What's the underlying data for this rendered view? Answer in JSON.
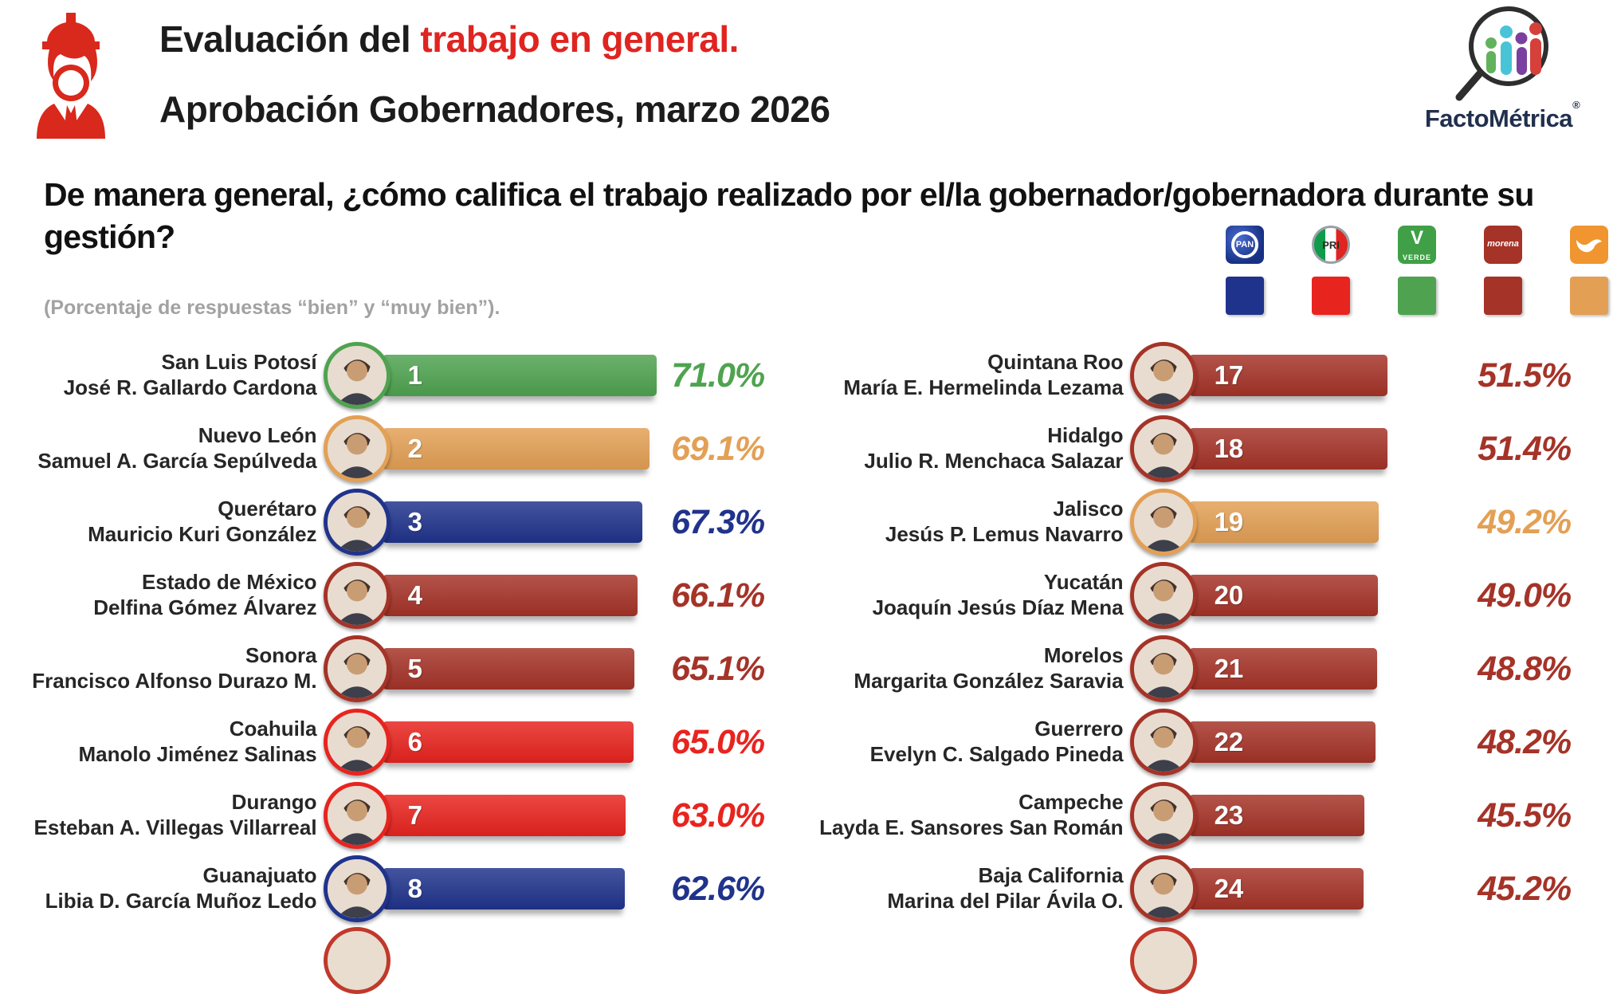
{
  "header": {
    "title_prefix": "Evaluación del ",
    "title_highlight": "trabajo en general.",
    "subtitle": "Aprobación Gobernadores, marzo 2026"
  },
  "brand": {
    "name": "FactoMétrica",
    "registered": "®"
  },
  "question": {
    "text": "De manera general, ¿cómo califica el trabajo realizado por el/la gobernador/gobernadora durante su gestión?",
    "note": "(Porcentaje de respuestas “bien” y “muy bien”)."
  },
  "legend": {
    "parties": [
      {
        "key": "pan",
        "name": "PAN",
        "color": "#20338c"
      },
      {
        "key": "pri",
        "name": "PRI",
        "color": "#e8241f"
      },
      {
        "key": "verde",
        "name": "VERDE",
        "color": "#4fa350"
      },
      {
        "key": "morena",
        "name": "morena",
        "color": "#a53328"
      },
      {
        "key": "mc",
        "name": "MC",
        "color": "#e3a055"
      }
    ]
  },
  "chart_data": {
    "type": "bar",
    "orientation": "horizontal",
    "title": "Aprobación Gobernadores, marzo 2026",
    "unit": "%",
    "value_note": "Porcentaje de respuestas bien y muy bien",
    "scale_max": 71.0,
    "legend_position": "top-right",
    "columns": [
      {
        "entries": [
          {
            "rank": 1,
            "state": "San Luis Potosí",
            "governor": "José R. Gallardo Cardona",
            "value": 71.0,
            "label": "71.0%",
            "color": "#4fa350"
          },
          {
            "rank": 2,
            "state": "Nuevo León",
            "governor": "Samuel A. García Sepúlveda",
            "value": 69.1,
            "label": "69.1%",
            "color": "#e3a055"
          },
          {
            "rank": 3,
            "state": "Querétaro",
            "governor": "Mauricio Kuri González",
            "value": 67.3,
            "label": "67.3%",
            "color": "#20338c"
          },
          {
            "rank": 4,
            "state": "Estado de México",
            "governor": "Delfina Gómez Álvarez",
            "value": 66.1,
            "label": "66.1%",
            "color": "#a53328"
          },
          {
            "rank": 5,
            "state": "Sonora",
            "governor": "Francisco Alfonso Durazo M.",
            "value": 65.1,
            "label": "65.1%",
            "color": "#a53328"
          },
          {
            "rank": 6,
            "state": "Coahuila",
            "governor": "Manolo Jiménez Salinas",
            "value": 65.0,
            "label": "65.0%",
            "color": "#e8241f"
          },
          {
            "rank": 7,
            "state": "Durango",
            "governor": "Esteban A. Villegas Villarreal",
            "value": 63.0,
            "label": "63.0%",
            "color": "#e8241f"
          },
          {
            "rank": 8,
            "state": "Guanajuato",
            "governor": "Libia D. García Muñoz Ledo",
            "value": 62.6,
            "label": "62.6%",
            "color": "#20338c"
          }
        ]
      },
      {
        "entries": [
          {
            "rank": 17,
            "state": "Quintana Roo",
            "governor": "María E. Hermelinda Lezama",
            "value": 51.5,
            "label": "51.5%",
            "color": "#a53328"
          },
          {
            "rank": 18,
            "state": "Hidalgo",
            "governor": "Julio R. Menchaca Salazar",
            "value": 51.4,
            "label": "51.4%",
            "color": "#a53328"
          },
          {
            "rank": 19,
            "state": "Jalisco",
            "governor": "Jesús P. Lemus Navarro",
            "value": 49.2,
            "label": "49.2%",
            "color": "#e3a055"
          },
          {
            "rank": 20,
            "state": "Yucatán",
            "governor": "Joaquín Jesús Díaz Mena",
            "value": 49.0,
            "label": "49.0%",
            "color": "#a53328"
          },
          {
            "rank": 21,
            "state": "Morelos",
            "governor": "Margarita González Saravia",
            "value": 48.8,
            "label": "48.8%",
            "color": "#a53328"
          },
          {
            "rank": 22,
            "state": "Guerrero",
            "governor": "Evelyn C. Salgado Pineda",
            "value": 48.2,
            "label": "48.2%",
            "color": "#a53328"
          },
          {
            "rank": 23,
            "state": "Campeche",
            "governor": "Layda E. Sansores San Román",
            "value": 45.5,
            "label": "45.5%",
            "color": "#a53328"
          },
          {
            "rank": 24,
            "state": "Baja California",
            "governor": "Marina del Pilar Ávila O.",
            "value": 45.2,
            "label": "45.2%",
            "color": "#a53328"
          }
        ]
      }
    ]
  }
}
